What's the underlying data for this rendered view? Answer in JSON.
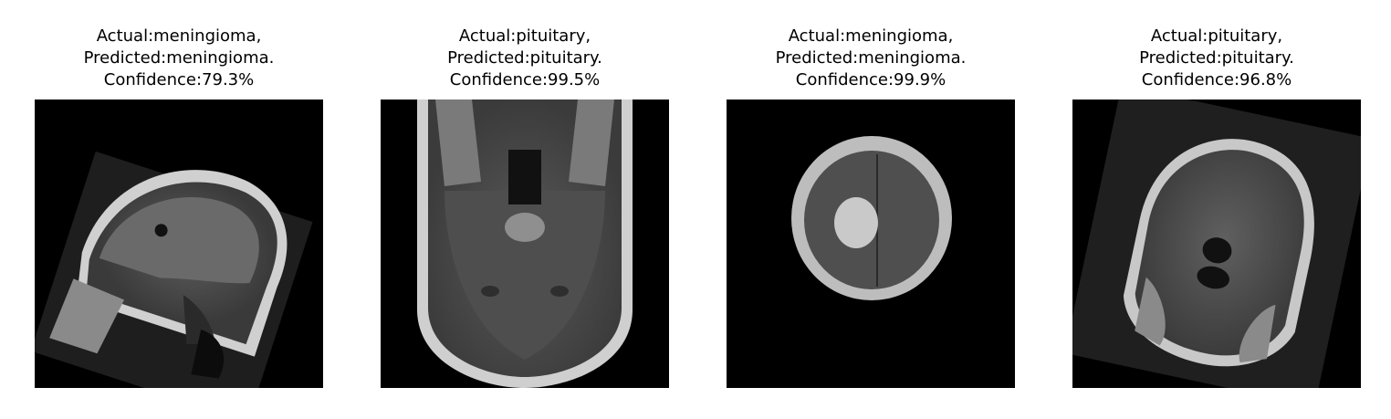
{
  "panels": [
    {
      "actual_line": "Actual:meningioma,",
      "predicted_line": "Predicted:meningioma.",
      "confidence_line": "Confidence:79.3%",
      "view": "sagittal"
    },
    {
      "actual_line": "Actual:pituitary,",
      "predicted_line": "Predicted:pituitary.",
      "confidence_line": "Confidence:99.5%",
      "view": "axial"
    },
    {
      "actual_line": "Actual:meningioma,",
      "predicted_line": "Predicted:meningioma.",
      "confidence_line": "Confidence:99.9%",
      "view": "axial"
    },
    {
      "actual_line": "Actual:pituitary,",
      "predicted_line": "Predicted:pituitary.",
      "confidence_line": "Confidence:96.8%",
      "view": "coronal"
    }
  ]
}
